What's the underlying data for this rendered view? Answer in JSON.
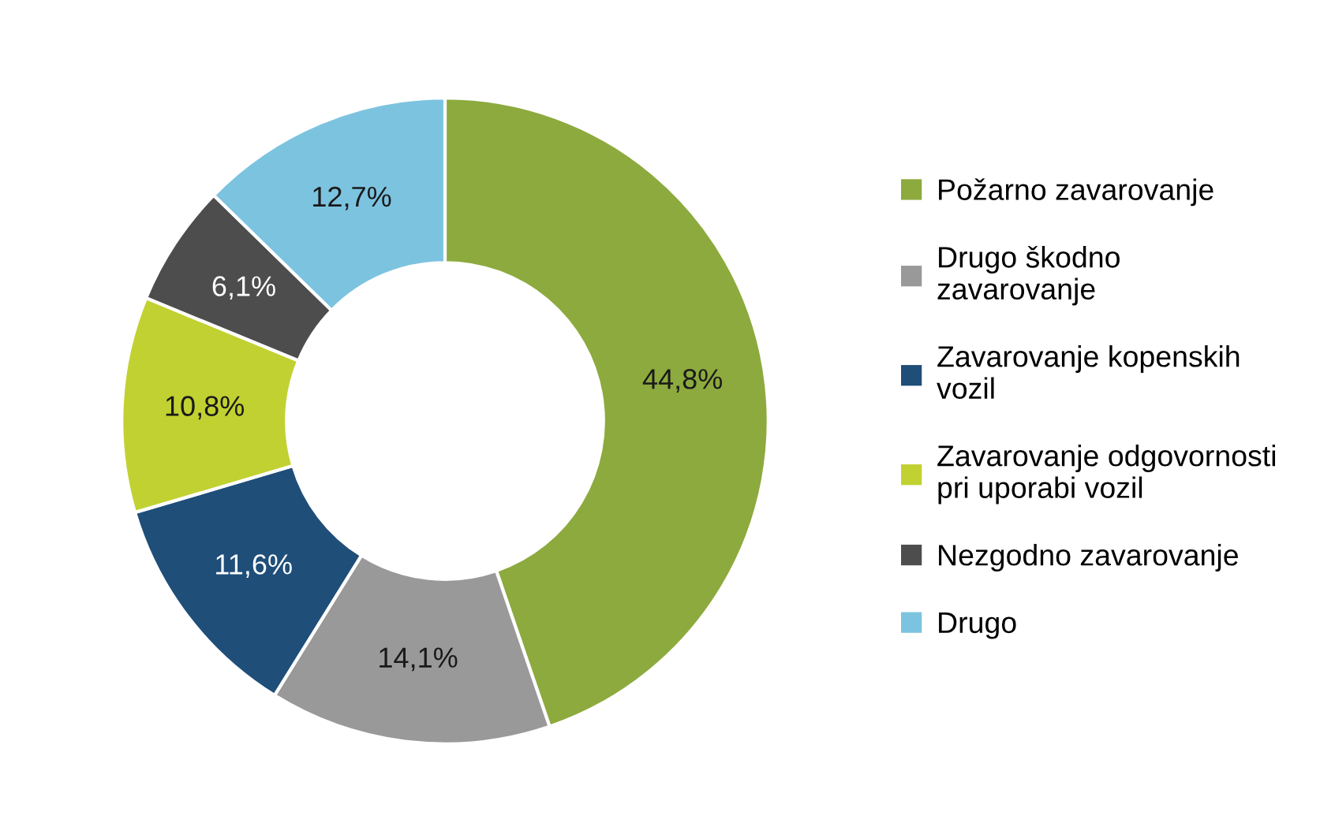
{
  "chart_data": {
    "type": "donut",
    "categories": [
      "Požarno zavarovanje",
      "Drugo škodno\nzavarovanje",
      "Zavarovanje kopenskih\nvozil",
      "Zavarovanje odgovornosti\npri uporabi vozil",
      "Nezgodno zavarovanje",
      "Drugo"
    ],
    "values": [
      44.8,
      14.1,
      11.6,
      10.8,
      6.1,
      12.7
    ],
    "value_labels": [
      "44,8%",
      "14,1%",
      "11,6%",
      "10,8%",
      "6,1%",
      "12,7%"
    ],
    "colors": [
      "#8daa3e",
      "#999999",
      "#1f4e79",
      "#c2d132",
      "#4d4d4d",
      "#7cc3e0"
    ],
    "legend": "right"
  }
}
